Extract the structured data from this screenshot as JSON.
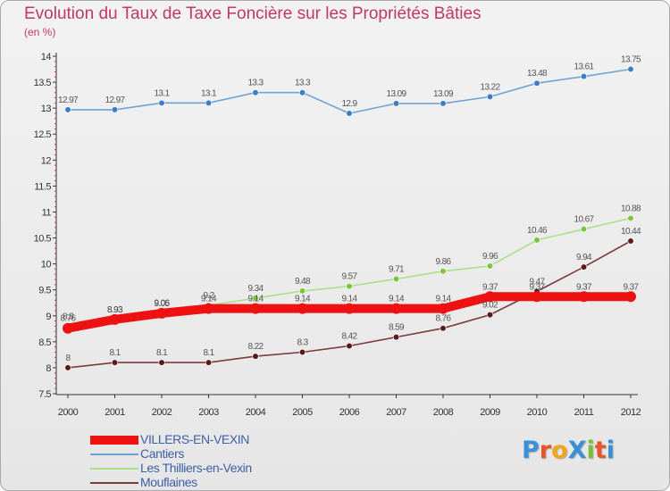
{
  "title": "Evolution du Taux de Taxe Foncière sur les Propriétés Bâties",
  "unit_label": "(en %)",
  "logo": {
    "text": "ProXiti",
    "letter_colors": [
      "#3a8fd6",
      "#e8542a",
      "#f0a51c",
      "#3a8fd6",
      "#7bbf2e",
      "#e8542a",
      "#3a8fd6"
    ]
  },
  "chart_data": {
    "type": "line",
    "title": "Evolution du Taux de Taxe Foncière sur les Propriétés Bâties",
    "ylabel": "(en %)",
    "xlabel": "",
    "x": [
      "2000",
      "2001",
      "2002",
      "2003",
      "2004",
      "2005",
      "2006",
      "2007",
      "2008",
      "2009",
      "2010",
      "2011",
      "2012"
    ],
    "ylim": [
      7.5,
      14
    ],
    "yticks": [
      "7.5",
      "8",
      "8.5",
      "9",
      "9.5",
      "10",
      "10.5",
      "11",
      "11.5",
      "12",
      "12.5",
      "13",
      "13.5",
      "14"
    ],
    "grid": false,
    "legend_position": "bottom-left",
    "series": [
      {
        "name": "Cantiers",
        "color": "#6fa3d2",
        "marker": "#3b7fc2",
        "values": [
          12.97,
          12.97,
          13.1,
          13.1,
          13.3,
          13.3,
          12.9,
          13.09,
          13.09,
          13.22,
          13.48,
          13.61,
          13.75
        ],
        "labels": [
          "12.97",
          "12.97",
          "13.1",
          "13.1",
          "13.3",
          "13.3",
          "12.9",
          "13.09",
          "13.09",
          "13.22",
          "13.48",
          "13.61",
          "13.75"
        ]
      },
      {
        "name": "Les Thilliers-en-Vexin",
        "color": "#a9e08a",
        "marker": "#7cc43a",
        "values": [
          8.8,
          8.93,
          9.06,
          9.2,
          9.34,
          9.48,
          9.57,
          9.71,
          9.86,
          9.96,
          10.46,
          10.67,
          10.88
        ],
        "labels": [
          "8.8",
          "8.93",
          "9.06",
          "9.2",
          "9.34",
          "9.48",
          "9.57",
          "9.71",
          "9.86",
          "9.96",
          "10.46",
          "10.67",
          "10.88"
        ]
      },
      {
        "name": "Mouflaines",
        "color": "#7a3b3b",
        "marker": "#5a1a1a",
        "values": [
          8,
          8.1,
          8.1,
          8.1,
          8.22,
          8.3,
          8.42,
          8.59,
          8.76,
          9.02,
          9.47,
          9.94,
          10.44
        ],
        "labels": [
          "8",
          "8.1",
          "8.1",
          "8.1",
          "8.22",
          "8.3",
          "8.42",
          "8.59",
          "8.76",
          "9.02",
          "9.47",
          "9.94",
          "10.44"
        ]
      },
      {
        "name": "VILLERS-EN-VEXIN",
        "color": "#ee1111",
        "marker": "#ee1111",
        "highlight": true,
        "values": [
          8.76,
          8.93,
          9.05,
          9.14,
          9.14,
          9.14,
          9.14,
          9.14,
          9.14,
          9.37,
          9.37,
          9.37,
          9.37
        ],
        "labels": [
          "8.76",
          "8.93",
          "9.05",
          "9.14",
          "9.14",
          "9.14",
          "9.14",
          "9.14",
          "9.14",
          "9.37",
          "9.37",
          "9.37",
          "9.37"
        ]
      }
    ],
    "legend_order": [
      "VILLERS-EN-VEXIN",
      "Cantiers",
      "Les Thilliers-en-Vexin",
      "Mouflaines"
    ]
  }
}
